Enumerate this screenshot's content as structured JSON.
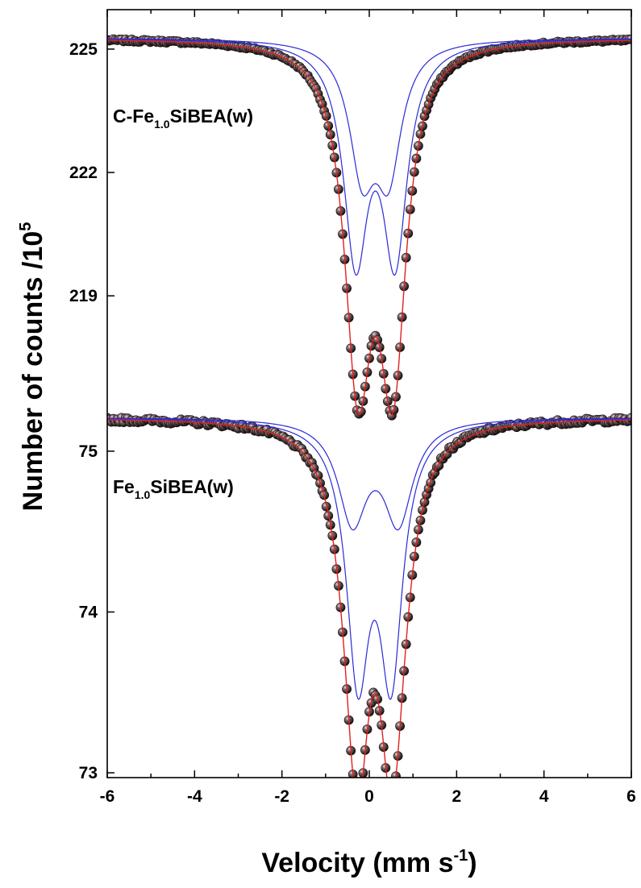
{
  "chart_data": {
    "type": "scatter",
    "xlabel": "Velocity (mm s",
    "xlabel_sup": "-1",
    "xlabel_end": ")",
    "ylabel": "Number of counts /10",
    "ylabel_sup": "5",
    "xlim": [
      -6,
      6
    ],
    "x_ticks": [
      "-6",
      "-4",
      "-2",
      "0",
      "2",
      "4",
      "6"
    ],
    "x_tick_values": [
      -6,
      -4,
      -2,
      0,
      2,
      4,
      6
    ],
    "grid": false,
    "panels": [
      {
        "label_prefix": "C-Fe",
        "label_sub": "1.0",
        "label_suffix": "SiBEA(w)",
        "ylim": [
          216.2,
          225.9
        ],
        "y_ticks": [
          "225",
          "222",
          "219"
        ],
        "y_tick_values": [
          225,
          222,
          219
        ],
        "baseline": 225.27,
        "doublets": [
          {
            "center": 0.14,
            "splitting": 0.9,
            "gamma": 0.34,
            "depth": 5.12
          },
          {
            "center": 0.14,
            "splitting": 0.6,
            "gamma": 0.36,
            "depth": 3.0
          }
        ],
        "fit_minima": [
          {
            "x": -0.31,
            "y": 217.2
          },
          {
            "x": 0.59,
            "y": 216.9
          }
        ],
        "fit_central_max": {
          "x": 0.1,
          "y": 221.6
        },
        "noise": 0.03
      },
      {
        "label_prefix": "Fe",
        "label_sub": "1.0",
        "label_suffix": "SiBEA(w)",
        "ylim": [
          72.97,
          75.2
        ],
        "y_ticks": [
          "75",
          "74",
          "73"
        ],
        "y_tick_values": [
          75,
          74,
          73
        ],
        "baseline": 75.21,
        "doublets": [
          {
            "center": 0.12,
            "splitting": 0.76,
            "gamma": 0.32,
            "depth": 1.52
          },
          {
            "center": 0.14,
            "splitting": 1.05,
            "gamma": 0.4,
            "depth": 0.62
          }
        ],
        "fit_minima": [
          {
            "x": -0.22,
            "y": 73.25
          },
          {
            "x": 0.48,
            "y": 73.25
          }
        ],
        "fit_central_max": {
          "x": 0.12,
          "y": 74.25
        },
        "noise": 0.015
      }
    ],
    "series": [
      {
        "marker": "sphere",
        "color": "#3a2a2a"
      },
      {
        "line": "fit",
        "color": "#e02020"
      },
      {
        "line": "component",
        "color": "#2a2ad8"
      }
    ]
  }
}
